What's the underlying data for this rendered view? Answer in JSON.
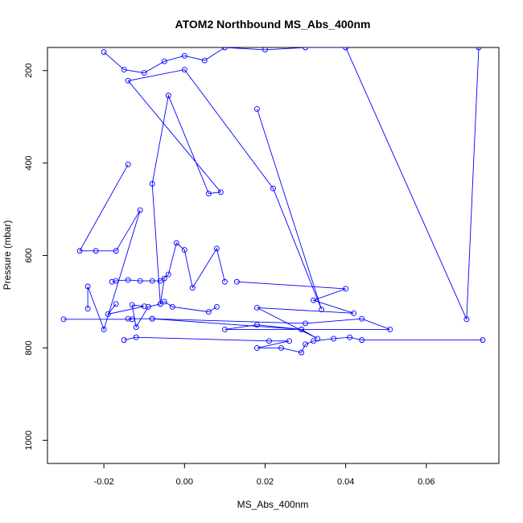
{
  "chart_data": {
    "type": "line",
    "title": "ATOM2 Northbound MS_Abs_400nm",
    "xlabel": "MS_Abs_400nm",
    "ylabel": "Pressure (mbar)",
    "xlim": [
      -0.034,
      0.078
    ],
    "ylim": [
      1050,
      150
    ],
    "y_reversed": true,
    "x_ticks": [
      -0.02,
      0.0,
      0.02,
      0.04,
      0.06
    ],
    "x_tick_labels": [
      "-0.02",
      "0.00",
      "0.02",
      "0.04",
      "0.06"
    ],
    "y_ticks": [
      200,
      400,
      600,
      800,
      1000
    ],
    "y_tick_labels": [
      "200",
      "400",
      "600",
      "800",
      "1000"
    ],
    "grid": false,
    "legend": "none",
    "series_color": "#0000ff",
    "marker": "open-circle",
    "series": [
      {
        "x": [
          -0.02,
          -0.015,
          -0.01,
          -0.005,
          0.0,
          0.005,
          0.01,
          0.02,
          0.03,
          0.04,
          0.07,
          0.073
        ],
        "y": [
          160,
          198,
          205,
          180,
          168,
          178,
          150,
          155,
          150,
          150,
          738,
          150
        ]
      },
      {
        "x": [
          0.018,
          0.034,
          0.022,
          0.0,
          -0.014,
          0.009,
          0.006,
          -0.004,
          -0.008,
          -0.006,
          -0.005
        ],
        "y": [
          283,
          717,
          455,
          198,
          222,
          463,
          466,
          254,
          445,
          705,
          650
        ]
      },
      {
        "x": [
          -0.014,
          -0.026,
          -0.022,
          -0.017,
          -0.011,
          -0.02,
          -0.024,
          -0.024
        ],
        "y": [
          403,
          590,
          590,
          590,
          502,
          760,
          667,
          715
        ]
      },
      {
        "x": [
          -0.018,
          -0.017,
          -0.014,
          -0.011,
          -0.008,
          -0.006,
          -0.004,
          -0.002,
          0.0,
          0.002,
          0.008,
          0.01
        ],
        "y": [
          657,
          655,
          653,
          655,
          655,
          655,
          641,
          573,
          588,
          670,
          585,
          657
        ]
      },
      {
        "x": [
          -0.017,
          -0.019,
          -0.01,
          -0.013,
          -0.012,
          -0.009,
          -0.006,
          -0.005,
          -0.003,
          0.006,
          0.008
        ],
        "y": [
          705,
          727,
          710,
          707,
          755,
          711,
          705,
          700,
          711,
          722,
          711
        ]
      },
      {
        "x": [
          -0.03,
          -0.013,
          -0.014,
          -0.008,
          0.03,
          0.044,
          0.051,
          0.01,
          0.018,
          0.029
        ],
        "y": [
          738,
          738,
          737,
          737,
          747,
          737,
          760,
          760,
          750,
          760
        ]
      },
      {
        "x": [
          -0.015,
          -0.012,
          0.021,
          0.026,
          0.018,
          0.024,
          0.029,
          0.03,
          0.032,
          0.037,
          0.041,
          0.044,
          0.074
        ],
        "y": [
          783,
          777,
          785,
          785,
          800,
          800,
          810,
          792,
          785,
          780,
          777,
          783,
          783
        ]
      },
      {
        "x": [
          0.013,
          0.04,
          0.032,
          0.042,
          0.018,
          0.033,
          0.029,
          -0.008
        ],
        "y": [
          657,
          672,
          697,
          725,
          713,
          780,
          760,
          737
        ]
      }
    ]
  }
}
